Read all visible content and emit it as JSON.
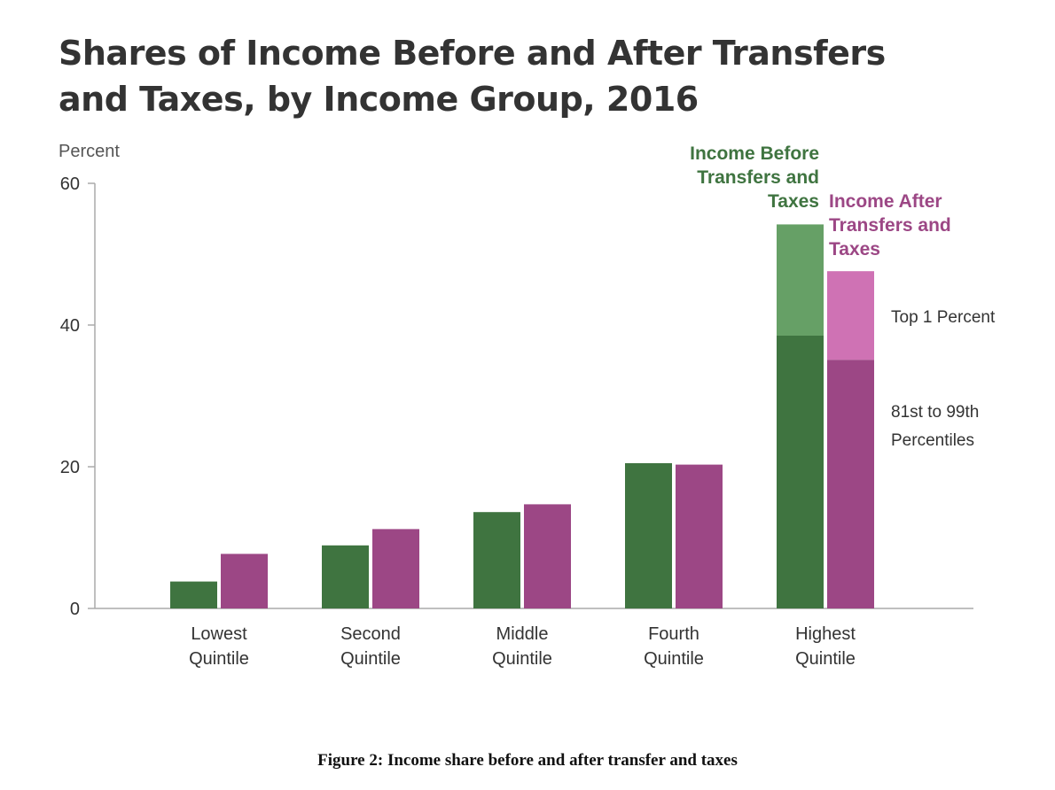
{
  "chart_data": {
    "type": "bar",
    "title_lines": [
      "Shares of Income Before and After Transfers",
      "and Taxes, by Income Group, 2016"
    ],
    "ylabel": "Percent",
    "ylim": [
      0,
      60
    ],
    "yticks": [
      "0",
      "20",
      "40",
      "60"
    ],
    "categories": [
      [
        "Lowest",
        "Quintile"
      ],
      [
        "Second",
        "Quintile"
      ],
      [
        "Middle",
        "Quintile"
      ],
      [
        "Fourth",
        "Quintile"
      ],
      [
        "Highest",
        "Quintile"
      ]
    ],
    "series": [
      {
        "name_lines": [
          "Income Before",
          "Transfers and",
          "Taxes"
        ],
        "color": "#3f7440",
        "top_color": "#66a066",
        "values": [
          3.8,
          8.9,
          13.6,
          20.5,
          54.2
        ],
        "highest_split": {
          "p81_99": 38.5,
          "top1": 15.7
        }
      },
      {
        "name_lines": [
          "Income After",
          "Transfers and",
          "Taxes"
        ],
        "color": "#9c4785",
        "top_color": "#cf72b4",
        "values": [
          7.7,
          11.2,
          14.7,
          20.3,
          47.6
        ],
        "highest_split": {
          "p81_99": 35.1,
          "top1": 12.5
        }
      }
    ],
    "segment_labels": {
      "top1": [
        "Top 1 Percent"
      ],
      "p81_99": [
        "81st to 99th",
        "Percentiles"
      ]
    },
    "grid": false
  },
  "caption": "Figure 2: Income share before and after transfer and taxes"
}
